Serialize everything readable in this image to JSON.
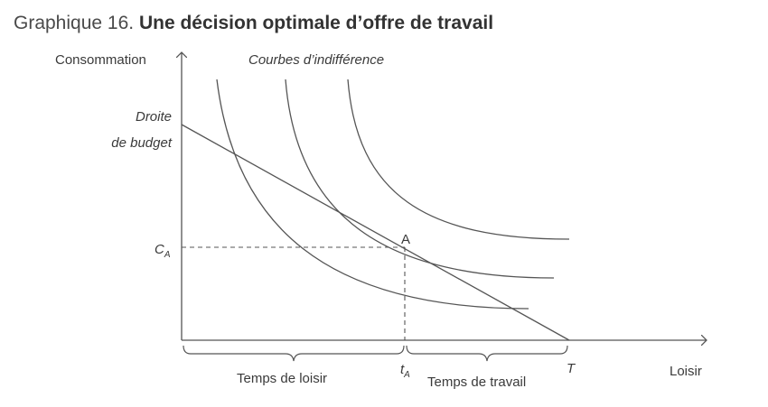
{
  "title": {
    "prefix": "Graphique 16.",
    "main": "Une décision optimale d’offre de travail"
  },
  "axes": {
    "y_label": "Consommation",
    "x_label": "Loisir"
  },
  "labels": {
    "indifference_curves": "Courbes d’indifférence",
    "budget_line_1": "Droite",
    "budget_line_2": "de budget",
    "point": "A",
    "c_a_main": "C",
    "c_a_sub": "A",
    "t_a_main": "t",
    "t_a_sub": "A",
    "t_end": "T",
    "leisure_time": "Temps de loisir",
    "work_time": "Temps de travail"
  },
  "colors": {
    "line": "#555555",
    "text": "#3a3a3a"
  }
}
